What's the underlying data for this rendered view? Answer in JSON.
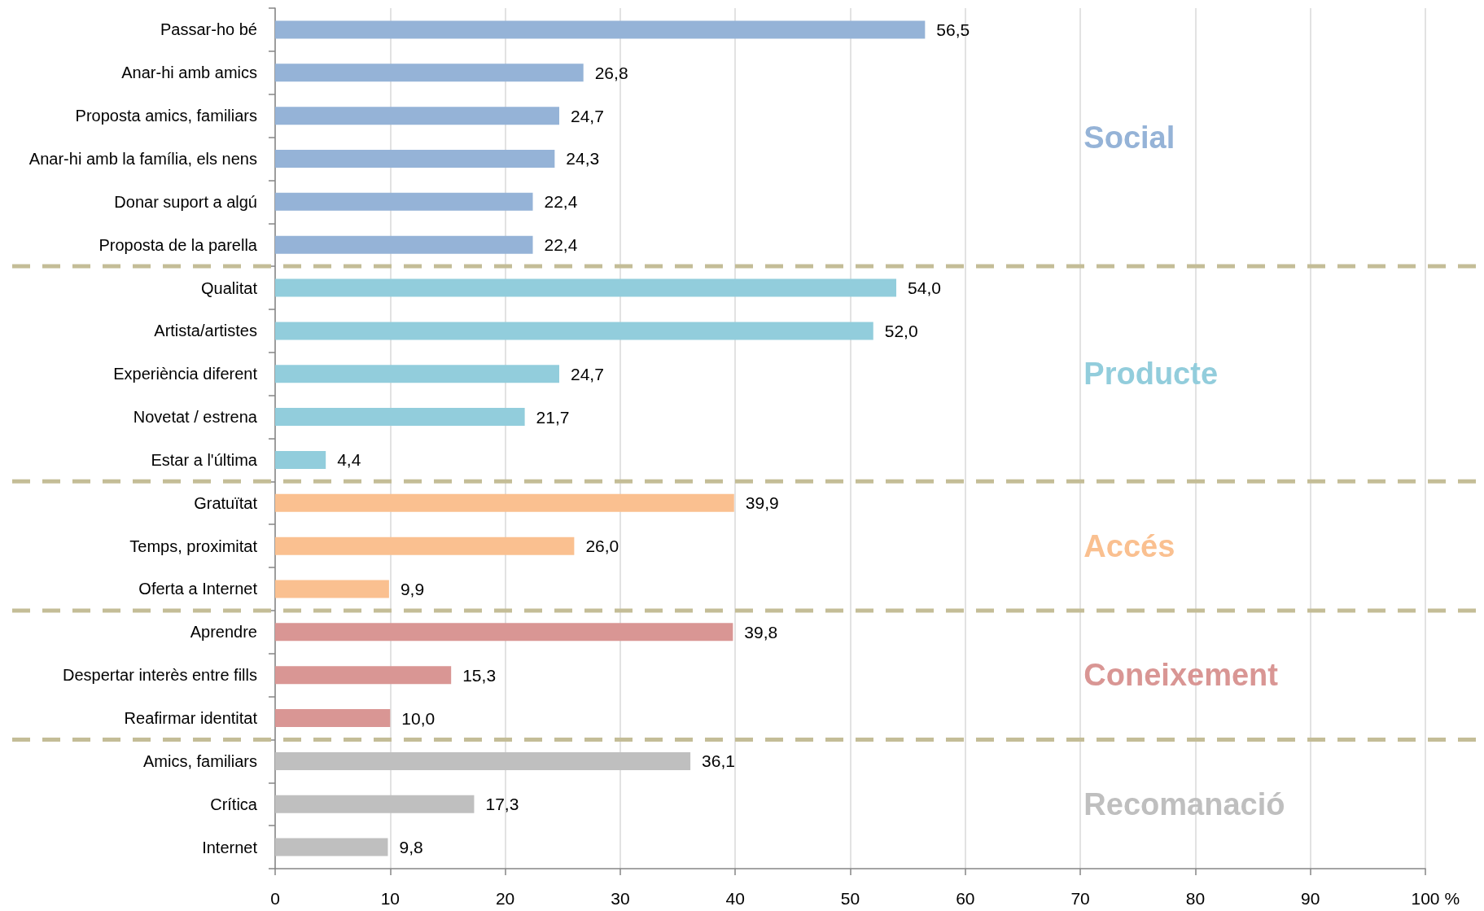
{
  "chart_data": {
    "type": "bar",
    "orientation": "horizontal",
    "xlabel": "%",
    "categories": [
      "Passar-ho bé",
      "Anar-hi amb amics",
      "Proposta amics, familiars",
      "Anar-hi amb la família, els nens",
      "Donar suport a algú",
      "Proposta de la parella",
      "Qualitat",
      "Artista/artistes",
      "Experiència diferent",
      "Novetat / estrena",
      "Estar a l'última",
      "Gratuïtat",
      "Temps, proximitat",
      "Oferta a Internet",
      "Aprendre",
      "Despertar interès entre fills",
      "Reafirmar identitat",
      "Amics, familiars",
      "Crítica",
      "Internet"
    ],
    "series": [
      {
        "name": "Social",
        "color": "#95b3d7",
        "values": [
          56.5,
          26.8,
          24.7,
          24.3,
          22.4,
          22.4,
          null,
          null,
          null,
          null,
          null,
          null,
          null,
          null,
          null,
          null,
          null,
          null,
          null,
          null
        ],
        "value_labels": [
          "56,5",
          "26,8",
          "24,7",
          "24,3",
          "22,4",
          "22,4",
          null,
          null,
          null,
          null,
          null,
          null,
          null,
          null,
          null,
          null,
          null,
          null,
          null,
          null
        ]
      },
      {
        "name": "Producte",
        "color": "#92cddc",
        "values": [
          null,
          null,
          null,
          null,
          null,
          null,
          54.0,
          52.0,
          24.7,
          21.7,
          4.4,
          null,
          null,
          null,
          null,
          null,
          null,
          null,
          null,
          null
        ],
        "value_labels": [
          null,
          null,
          null,
          null,
          null,
          null,
          "54,0",
          "52,0",
          "24,7",
          "21,7",
          "4,4",
          null,
          null,
          null,
          null,
          null,
          null,
          null,
          null,
          null
        ]
      },
      {
        "name": "Accés",
        "color": "#fac090",
        "values": [
          null,
          null,
          null,
          null,
          null,
          null,
          null,
          null,
          null,
          null,
          null,
          39.9,
          26.0,
          9.9,
          null,
          null,
          null,
          null,
          null,
          null
        ],
        "value_labels": [
          null,
          null,
          null,
          null,
          null,
          null,
          null,
          null,
          null,
          null,
          null,
          "39,9",
          "26,0",
          "9,9",
          null,
          null,
          null,
          null,
          null,
          null
        ]
      },
      {
        "name": "Coneixement",
        "color": "#d99694",
        "values": [
          null,
          null,
          null,
          null,
          null,
          null,
          null,
          null,
          null,
          null,
          null,
          null,
          null,
          null,
          39.8,
          15.3,
          10.0,
          null,
          null,
          null
        ],
        "value_labels": [
          null,
          null,
          null,
          null,
          null,
          null,
          null,
          null,
          null,
          null,
          null,
          null,
          null,
          null,
          "39,8",
          "15,3",
          "10,0",
          null,
          null,
          null
        ]
      },
      {
        "name": "Recomanació",
        "color": "#bfbfbf",
        "values": [
          null,
          null,
          null,
          null,
          null,
          null,
          null,
          null,
          null,
          null,
          null,
          null,
          null,
          null,
          null,
          null,
          null,
          36.1,
          17.3,
          9.8
        ],
        "value_labels": [
          null,
          null,
          null,
          null,
          null,
          null,
          null,
          null,
          null,
          null,
          null,
          null,
          null,
          null,
          null,
          null,
          null,
          "36,1",
          "17,3",
          "9,8"
        ]
      }
    ],
    "xlim": [
      0,
      100
    ],
    "xticks": [
      0,
      10,
      20,
      30,
      40,
      50,
      60,
      70,
      80,
      90,
      100
    ],
    "grid": "x"
  }
}
